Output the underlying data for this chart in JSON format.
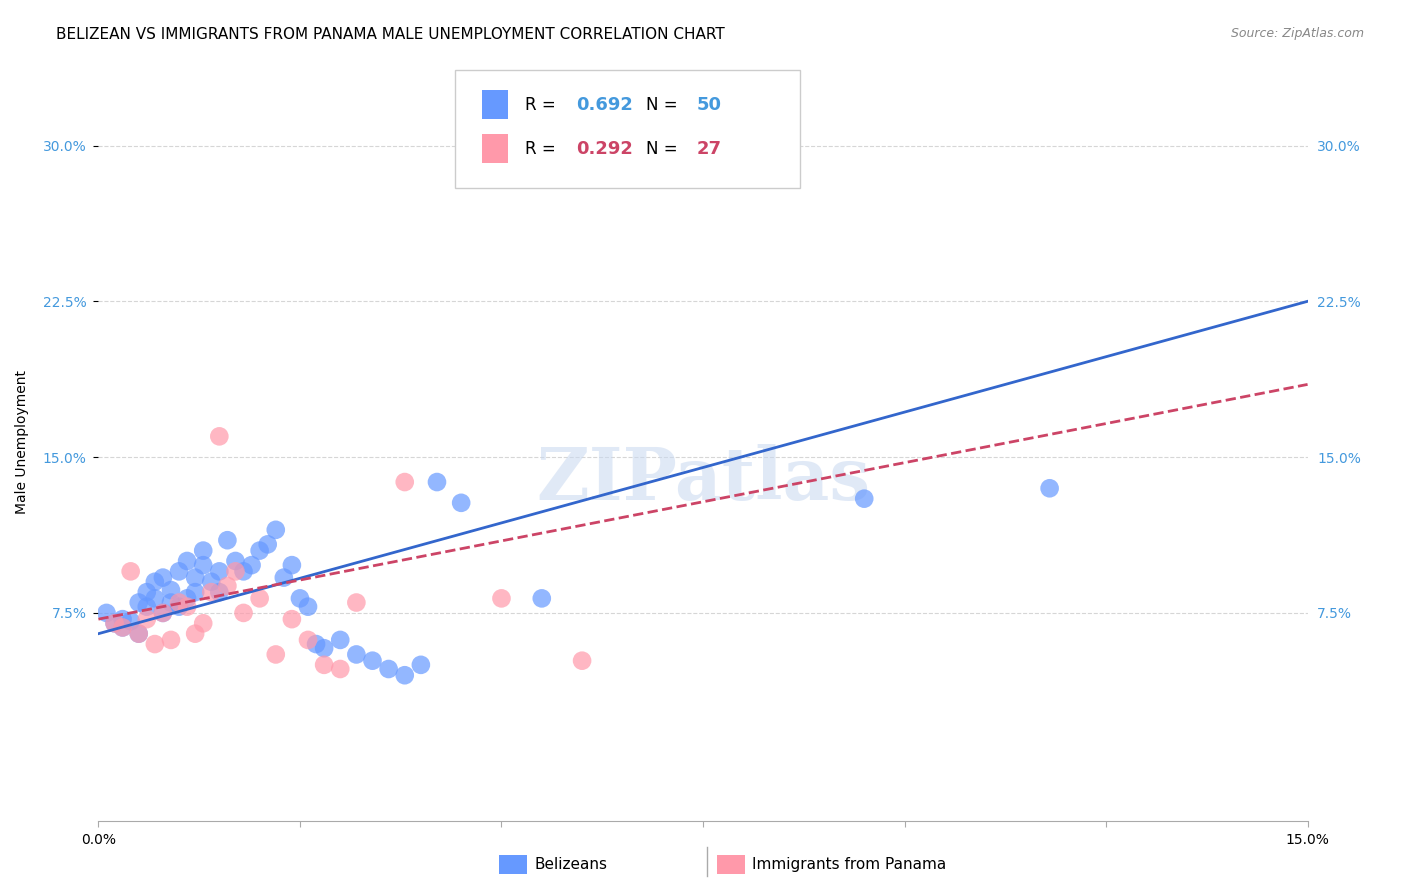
{
  "title": "BELIZEAN VS IMMIGRANTS FROM PANAMA MALE UNEMPLOYMENT CORRELATION CHART",
  "source": "Source: ZipAtlas.com",
  "ylabel": "Male Unemployment",
  "xlim": [
    0.0,
    0.15
  ],
  "ylim": [
    -0.025,
    0.34
  ],
  "yticks": [
    0.075,
    0.15,
    0.225,
    0.3
  ],
  "ytick_labels": [
    "7.5%",
    "15.0%",
    "22.5%",
    "30.0%"
  ],
  "grid_color": "#cccccc",
  "background_color": "#ffffff",
  "watermark": "ZIPatlas",
  "series": [
    {
      "name": "Belizeans",
      "R": 0.692,
      "N": 50,
      "color": "#6699ff",
      "line_color": "#3366cc",
      "line_style": "solid",
      "x": [
        0.001,
        0.002,
        0.003,
        0.003,
        0.004,
        0.005,
        0.005,
        0.006,
        0.006,
        0.007,
        0.007,
        0.008,
        0.008,
        0.009,
        0.009,
        0.01,
        0.01,
        0.011,
        0.011,
        0.012,
        0.012,
        0.013,
        0.013,
        0.014,
        0.015,
        0.015,
        0.016,
        0.017,
        0.018,
        0.019,
        0.02,
        0.021,
        0.022,
        0.023,
        0.024,
        0.025,
        0.026,
        0.027,
        0.028,
        0.03,
        0.032,
        0.034,
        0.036,
        0.038,
        0.04,
        0.042,
        0.045,
        0.055,
        0.095,
        0.118
      ],
      "y": [
        0.075,
        0.07,
        0.068,
        0.072,
        0.071,
        0.08,
        0.065,
        0.085,
        0.078,
        0.09,
        0.082,
        0.092,
        0.075,
        0.086,
        0.08,
        0.095,
        0.078,
        0.1,
        0.082,
        0.092,
        0.085,
        0.098,
        0.105,
        0.09,
        0.095,
        0.085,
        0.11,
        0.1,
        0.095,
        0.098,
        0.105,
        0.108,
        0.115,
        0.092,
        0.098,
        0.082,
        0.078,
        0.06,
        0.058,
        0.062,
        0.055,
        0.052,
        0.048,
        0.045,
        0.05,
        0.138,
        0.128,
        0.082,
        0.13,
        0.135
      ],
      "trend_x": [
        0.0,
        0.15
      ],
      "trend_y": [
        0.065,
        0.225
      ]
    },
    {
      "name": "Immigrants from Panama",
      "R": 0.292,
      "N": 27,
      "color": "#ff99aa",
      "line_color": "#cc4466",
      "line_style": "dashed",
      "x": [
        0.002,
        0.003,
        0.004,
        0.005,
        0.006,
        0.007,
        0.008,
        0.009,
        0.01,
        0.011,
        0.012,
        0.013,
        0.014,
        0.015,
        0.016,
        0.017,
        0.018,
        0.02,
        0.022,
        0.024,
        0.026,
        0.028,
        0.03,
        0.032,
        0.038,
        0.05,
        0.06
      ],
      "y": [
        0.07,
        0.068,
        0.095,
        0.065,
        0.072,
        0.06,
        0.075,
        0.062,
        0.08,
        0.078,
        0.065,
        0.07,
        0.085,
        0.16,
        0.088,
        0.095,
        0.075,
        0.082,
        0.055,
        0.072,
        0.062,
        0.05,
        0.048,
        0.08,
        0.138,
        0.082,
        0.052
      ],
      "trend_x": [
        0.0,
        0.15
      ],
      "trend_y": [
        0.072,
        0.185
      ]
    }
  ],
  "title_fontsize": 11,
  "axis_label_fontsize": 10,
  "tick_fontsize": 10,
  "legend_fontsize": 12,
  "source_fontsize": 9
}
